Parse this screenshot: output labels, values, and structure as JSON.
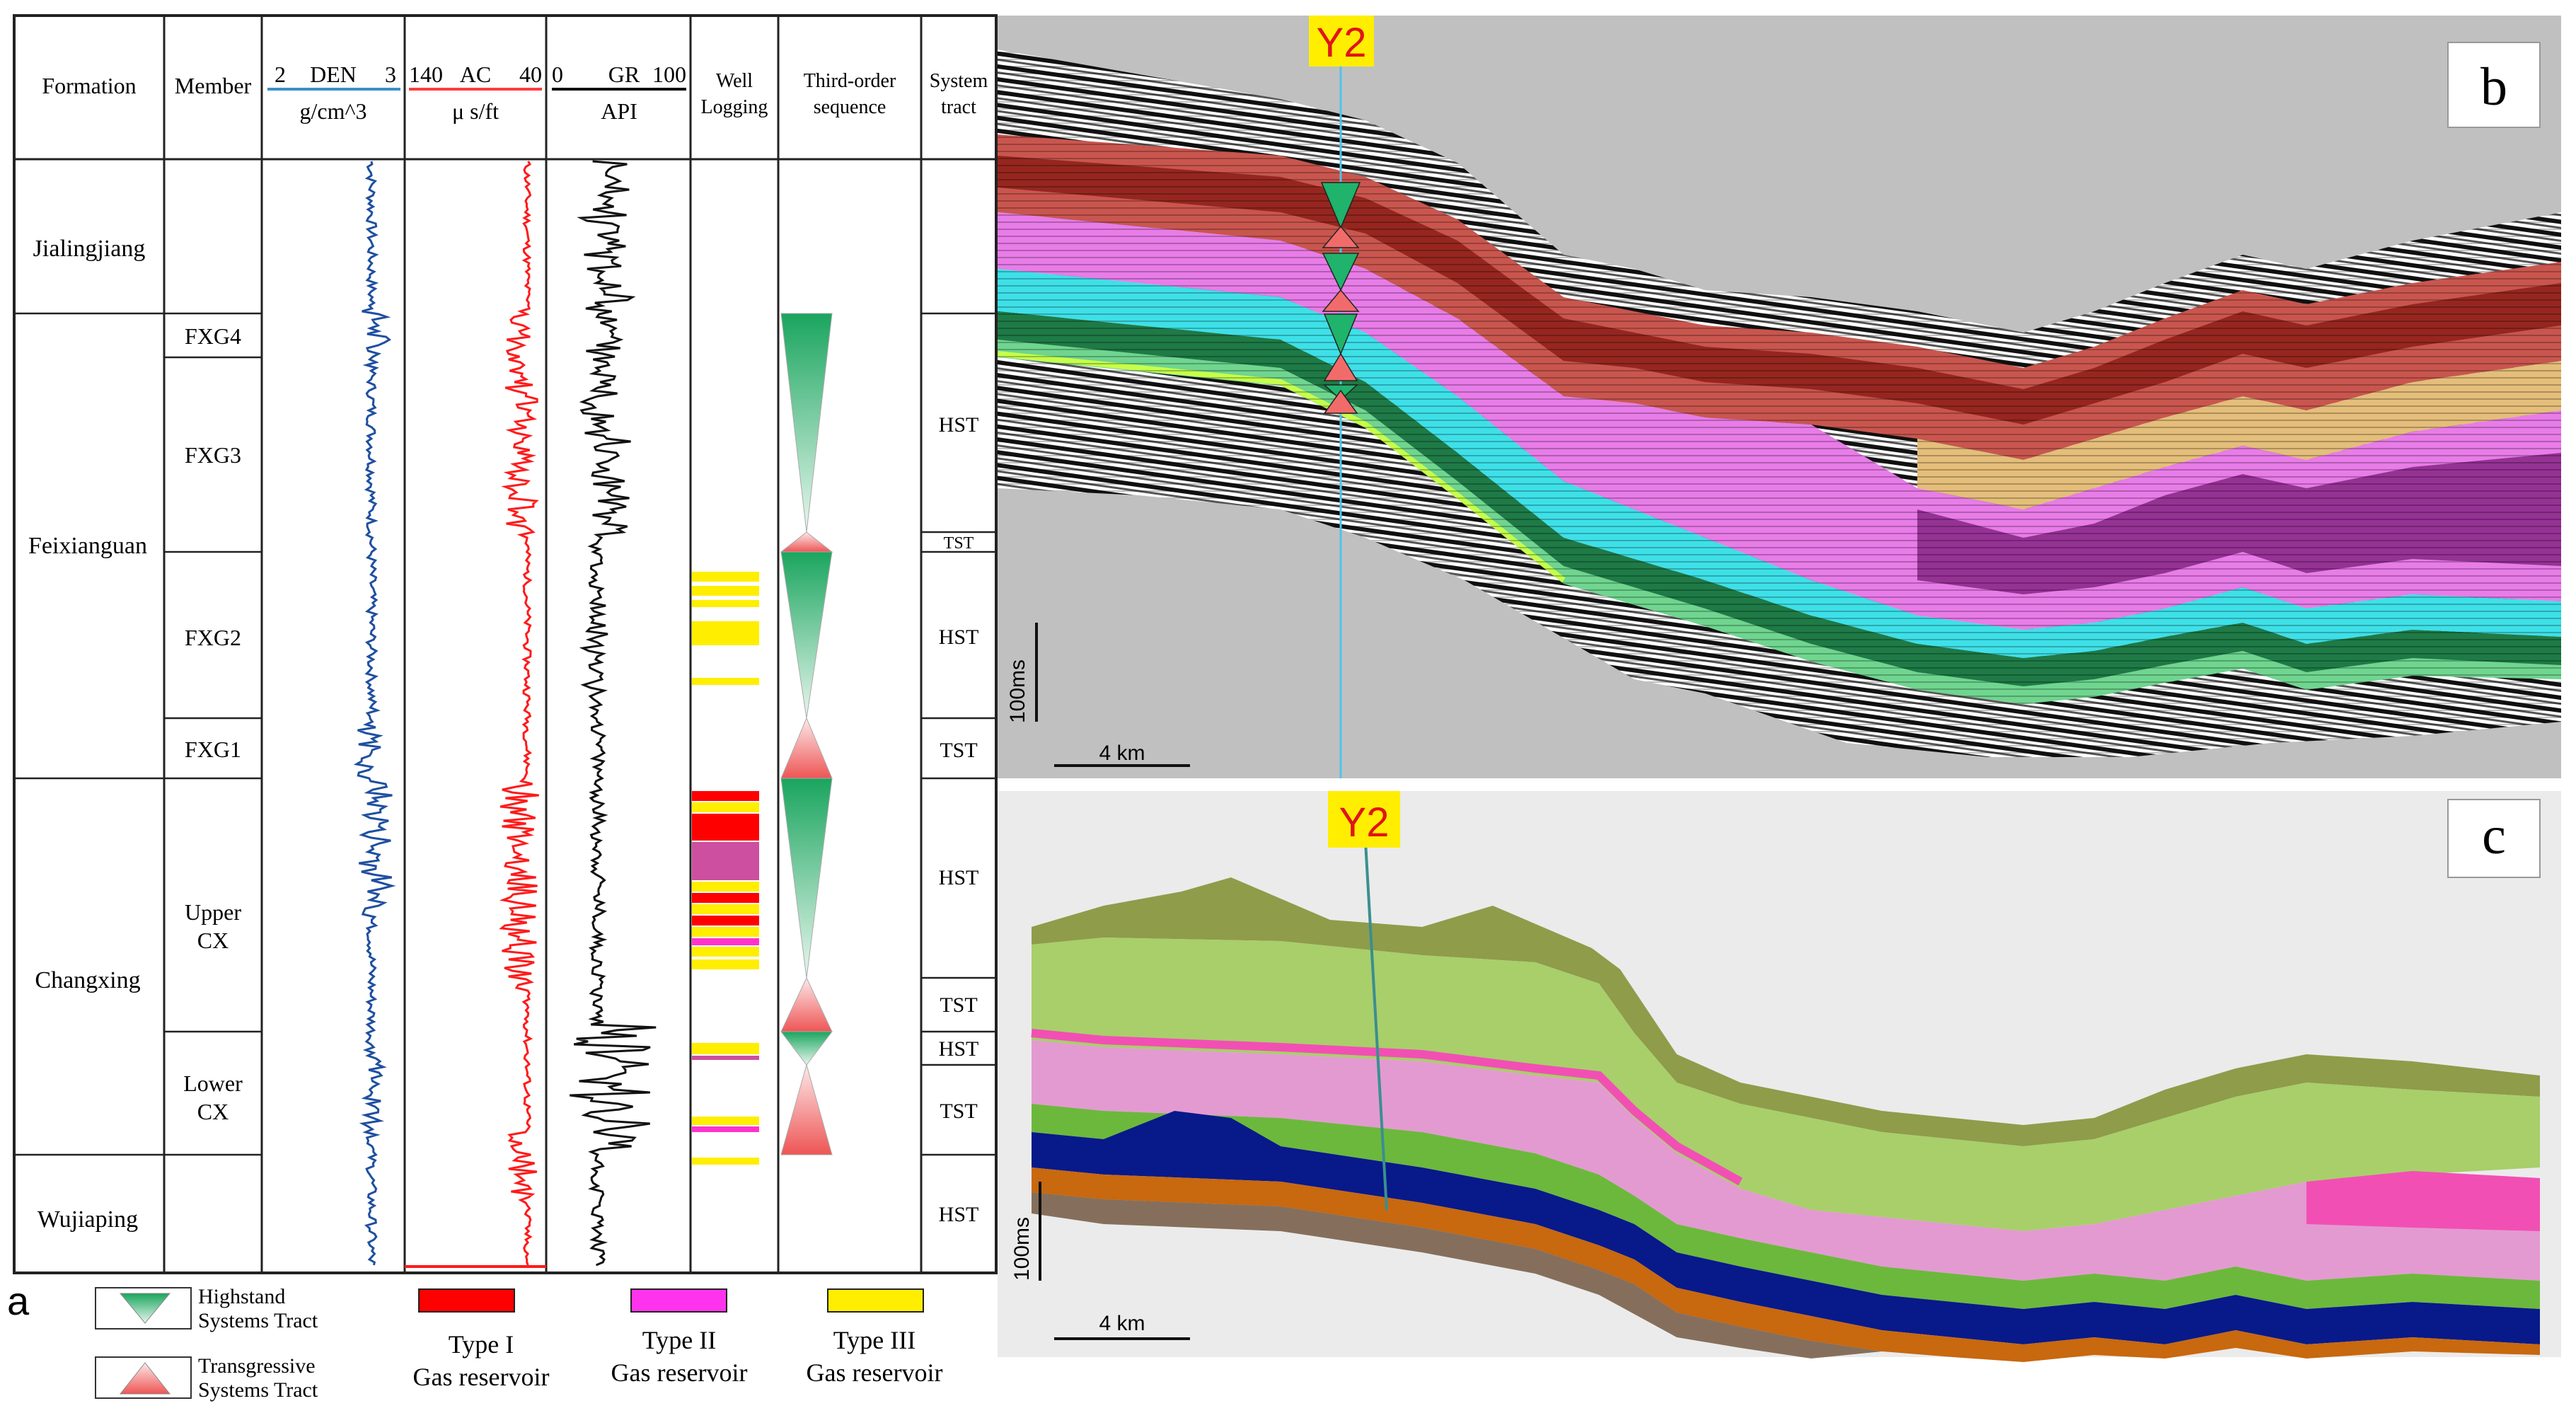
{
  "panel_a": {
    "columns": {
      "formation": "Formation",
      "member": "Member",
      "den_range_left": "2",
      "den_name": "DEN",
      "den_range_right": "3",
      "den_unit": "g/cm^3",
      "ac_range_left": "140",
      "ac_name": "AC",
      "ac_range_right": "40",
      "ac_unit": "μ s/ft",
      "gr_range_left": "0",
      "gr_name": "GR",
      "gr_range_right": "100",
      "gr_unit": "API",
      "well_logging_line1": "Well",
      "well_logging_line2": "Logging",
      "sequence_line1": "Third-order",
      "sequence_line2": "sequence",
      "systems_tract_line1": "System",
      "systems_tract_line2": "tract"
    },
    "formations": [
      "Jialingjiang",
      "Feixianguan",
      "Changxing",
      "Wujiaping"
    ],
    "members": [
      "FXG4",
      "FXG3",
      "FXG2",
      "FXG1",
      "Upper",
      "CX",
      "Lower",
      "CX"
    ],
    "tracts": [
      "HST",
      "TST",
      "HST",
      "TST",
      "HST",
      "TST",
      "HST",
      "TST",
      "HST"
    ],
    "curve_colors": {
      "den": "#1f4fa0",
      "ac": "#ff1a1a",
      "gr": "#111111"
    },
    "panel_label": "a"
  },
  "legend": {
    "hst_line1": "Highstand",
    "hst_line2": "Systems Tract",
    "tst_line1": "Transgressive",
    "tst_line2": "Systems Tract",
    "type1_line1": "Type I",
    "type1_line2": "Gas reservoir",
    "type2_line1": "Type II",
    "type2_line2": "Gas reservoir",
    "type3_line1": "Type III",
    "type3_line2": "Gas reservoir",
    "colors": {
      "type1": "#ff0000",
      "type2": "#ff33cc",
      "type3": "#ffee00",
      "hst": "#2db36b",
      "tst": "#f26b6b"
    }
  },
  "panel_b": {
    "label": "b",
    "well": "Y2",
    "time_scale": "100ms",
    "distance_scale": "4 km"
  },
  "panel_c": {
    "label": "c",
    "well": "Y2",
    "time_scale": "100ms",
    "distance_scale": "4 km"
  }
}
